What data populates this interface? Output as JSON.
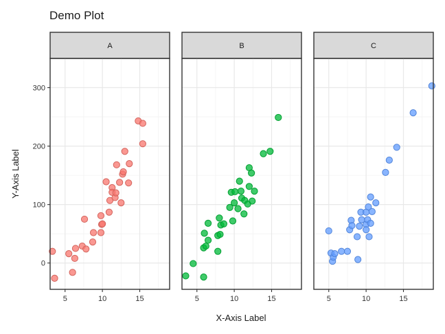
{
  "chart_data": {
    "type": "scatter",
    "title": "Demo Plot",
    "xlabel": "X-Axis Label",
    "ylabel": "Y-Axis Label",
    "xlim": [
      3,
      19
    ],
    "ylim": [
      -45,
      350
    ],
    "x_ticks": [
      5,
      10,
      15
    ],
    "y_ticks": [
      0,
      100,
      200,
      300
    ],
    "grid": true,
    "legend": "none",
    "panels": [
      {
        "label": "A",
        "color": "#F8766D",
        "points": [
          [
            3.3,
            20
          ],
          [
            3.6,
            -26
          ],
          [
            5.5,
            16
          ],
          [
            6.0,
            -16
          ],
          [
            6.3,
            8
          ],
          [
            6.4,
            25
          ],
          [
            7.3,
            29
          ],
          [
            7.6,
            75
          ],
          [
            7.8,
            24
          ],
          [
            8.7,
            36
          ],
          [
            8.8,
            52
          ],
          [
            9.8,
            52
          ],
          [
            9.8,
            81
          ],
          [
            9.9,
            66
          ],
          [
            10.0,
            67
          ],
          [
            10.5,
            139
          ],
          [
            10.9,
            87
          ],
          [
            11.0,
            107
          ],
          [
            11.3,
            129
          ],
          [
            11.3,
            121
          ],
          [
            11.7,
            112
          ],
          [
            11.8,
            120
          ],
          [
            11.9,
            168
          ],
          [
            12.3,
            138
          ],
          [
            12.5,
            103
          ],
          [
            12.7,
            152
          ],
          [
            12.8,
            156
          ],
          [
            13.0,
            191
          ],
          [
            13.5,
            137
          ],
          [
            13.6,
            170
          ],
          [
            14.8,
            243
          ],
          [
            15.4,
            239
          ],
          [
            15.4,
            204
          ]
        ]
      },
      {
        "label": "B",
        "color": "#00BA38",
        "points": [
          [
            3.5,
            -22
          ],
          [
            4.5,
            -1
          ],
          [
            5.9,
            -24
          ],
          [
            5.9,
            26
          ],
          [
            6.0,
            51
          ],
          [
            6.2,
            29
          ],
          [
            6.5,
            39
          ],
          [
            6.5,
            68
          ],
          [
            7.8,
            47
          ],
          [
            7.8,
            20
          ],
          [
            8.0,
            77
          ],
          [
            8.1,
            49
          ],
          [
            8.2,
            65
          ],
          [
            8.6,
            67
          ],
          [
            9.4,
            95
          ],
          [
            9.6,
            121
          ],
          [
            9.8,
            72
          ],
          [
            10.0,
            103
          ],
          [
            10.1,
            122
          ],
          [
            10.5,
            93
          ],
          [
            10.7,
            140
          ],
          [
            10.9,
            123
          ],
          [
            11.0,
            111
          ],
          [
            11.3,
            84
          ],
          [
            11.4,
            107
          ],
          [
            11.8,
            101
          ],
          [
            12.0,
            163
          ],
          [
            12.0,
            131
          ],
          [
            12.3,
            154
          ],
          [
            12.4,
            106
          ],
          [
            12.7,
            123
          ],
          [
            13.9,
            187
          ],
          [
            14.8,
            191
          ],
          [
            15.9,
            249
          ]
        ]
      },
      {
        "label": "C",
        "color": "#619CFF",
        "points": [
          [
            5.0,
            55
          ],
          [
            5.3,
            17
          ],
          [
            5.5,
            3
          ],
          [
            5.6,
            10
          ],
          [
            5.8,
            16
          ],
          [
            6.7,
            20
          ],
          [
            7.5,
            20
          ],
          [
            7.8,
            57
          ],
          [
            8.0,
            73
          ],
          [
            8.1,
            64
          ],
          [
            8.8,
            45
          ],
          [
            8.9,
            6
          ],
          [
            9.1,
            63
          ],
          [
            9.3,
            87
          ],
          [
            9.4,
            74
          ],
          [
            10.0,
            66
          ],
          [
            10.0,
            57
          ],
          [
            10.0,
            87
          ],
          [
            10.2,
            74
          ],
          [
            10.3,
            96
          ],
          [
            10.4,
            45
          ],
          [
            10.6,
            68
          ],
          [
            10.6,
            113
          ],
          [
            10.8,
            88
          ],
          [
            11.3,
            103
          ],
          [
            12.6,
            155
          ],
          [
            13.1,
            176
          ],
          [
            14.1,
            198
          ],
          [
            16.3,
            257
          ],
          [
            18.8,
            303
          ]
        ]
      }
    ]
  }
}
